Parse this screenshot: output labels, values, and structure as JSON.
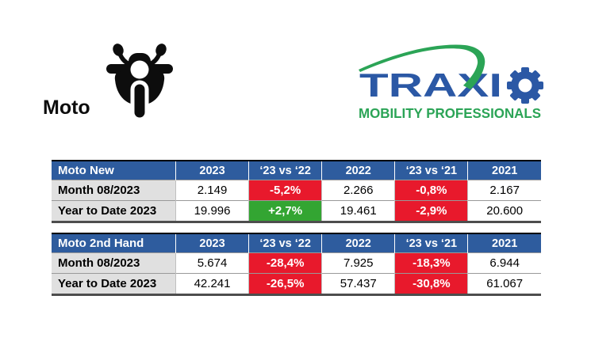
{
  "header": {
    "section_label": "Moto",
    "logo_text": "TRAXI",
    "logo_tagline": "MOBILITY PROFESSIONALS"
  },
  "colors": {
    "table_header_bg": "#2E5C9E",
    "row_label_bg": "#E0E0E0",
    "negative_bg": "#E8192C",
    "positive_bg": "#33A532",
    "logo_blue": "#2B58A5",
    "logo_green": "#2BA456",
    "icon_black": "#0D0D0D"
  },
  "chart_data": [
    {
      "type": "table",
      "title": "Moto New",
      "columns": [
        "2023",
        "‘23 vs ‘22",
        "2022",
        "‘23 vs ‘21",
        "2021"
      ],
      "rows": [
        {
          "label": "Month 08/2023",
          "cells": [
            {
              "v": "2.149",
              "bg": "none"
            },
            {
              "v": "-5,2%",
              "bg": "negative"
            },
            {
              "v": "2.266",
              "bg": "none"
            },
            {
              "v": "-0,8%",
              "bg": "negative"
            },
            {
              "v": "2.167",
              "bg": "none"
            }
          ]
        },
        {
          "label": "Year to Date 2023",
          "cells": [
            {
              "v": "19.996",
              "bg": "none"
            },
            {
              "v": "+2,7%",
              "bg": "positive"
            },
            {
              "v": "19.461",
              "bg": "none"
            },
            {
              "v": "-2,9%",
              "bg": "negative"
            },
            {
              "v": "20.600",
              "bg": "none"
            }
          ]
        }
      ]
    },
    {
      "type": "table",
      "title": "Moto 2nd Hand",
      "columns": [
        "2023",
        "‘23 vs ‘22",
        "2022",
        "‘23 vs ‘21",
        "2021"
      ],
      "rows": [
        {
          "label": "Month 08/2023",
          "cells": [
            {
              "v": "5.674",
              "bg": "none"
            },
            {
              "v": "-28,4%",
              "bg": "negative"
            },
            {
              "v": "7.925",
              "bg": "none"
            },
            {
              "v": "-18,3%",
              "bg": "negative"
            },
            {
              "v": "6.944",
              "bg": "none"
            }
          ]
        },
        {
          "label": "Year to Date 2023",
          "cells": [
            {
              "v": "42.241",
              "bg": "none"
            },
            {
              "v": "-26,5%",
              "bg": "negative"
            },
            {
              "v": "57.437",
              "bg": "none"
            },
            {
              "v": "-30,8%",
              "bg": "negative"
            },
            {
              "v": "61.067",
              "bg": "none"
            }
          ]
        }
      ]
    }
  ]
}
